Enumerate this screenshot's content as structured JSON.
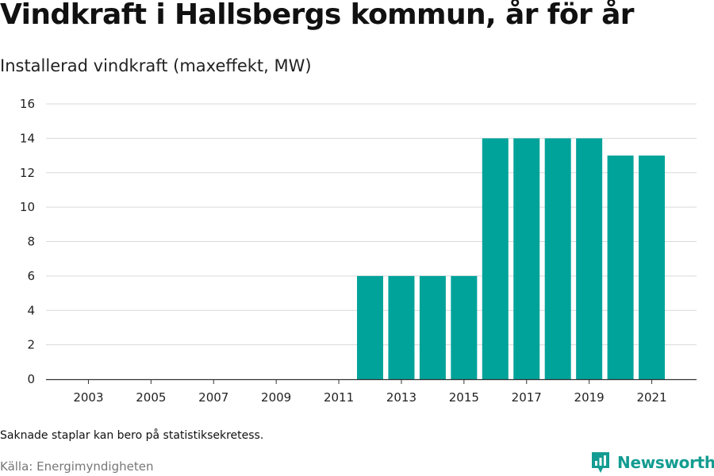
{
  "header": {
    "title": "Vindkraft i Hallsbergs kommun, år för år",
    "subtitle": "Installerad vindkraft (maxeffekt, MW)"
  },
  "footer": {
    "note": "Saknade staplar kan bero på statistiksekretess.",
    "source": "Källa: Energimyndigheten",
    "brand": "Newsworthy",
    "brand_icon": "bar-chart-logo-icon"
  },
  "colors": {
    "bar": "#00a39a",
    "grid": "#d9d9d9",
    "axis": "#333333",
    "brand": "#139c91"
  },
  "chart_data": {
    "type": "bar",
    "title": "Vindkraft i Hallsbergs kommun, år för år",
    "ylabel": "Installerad vindkraft (maxeffekt, MW)",
    "categories": [
      "2002",
      "2003",
      "2004",
      "2005",
      "2006",
      "2007",
      "2008",
      "2009",
      "2010",
      "2011",
      "2012",
      "2013",
      "2014",
      "2015",
      "2016",
      "2017",
      "2018",
      "2019",
      "2020",
      "2021"
    ],
    "values": [
      null,
      null,
      null,
      null,
      null,
      null,
      null,
      null,
      null,
      null,
      6,
      6,
      6,
      6,
      14,
      14,
      14,
      14,
      13,
      13
    ],
    "x_tick_labels": [
      "2003",
      "2005",
      "2007",
      "2009",
      "2011",
      "2013",
      "2015",
      "2017",
      "2019",
      "2021"
    ],
    "y_ticks": [
      "0",
      "2",
      "4",
      "6",
      "8",
      "10",
      "12",
      "14",
      "16"
    ],
    "ylim": [
      0,
      16
    ],
    "grid": true,
    "legend": "none"
  }
}
